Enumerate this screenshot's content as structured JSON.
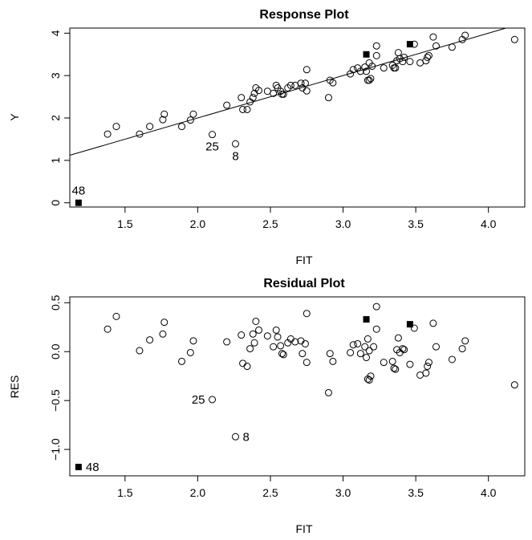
{
  "chart_data": [
    {
      "type": "scatter",
      "title": "Response Plot",
      "xlabel": "FIT",
      "ylabel": "Y",
      "xlim": [
        1.12,
        4.25
      ],
      "ylim": [
        -0.1,
        4.12
      ],
      "xticks": [
        "1.5",
        "2.0",
        "2.5",
        "3.0",
        "3.5",
        "4.0"
      ],
      "yticks": [
        "0",
        "1",
        "2",
        "3",
        "4"
      ],
      "grid": false,
      "fit_line": {
        "intercept": 0.0,
        "slope": 1.0
      },
      "points": [
        {
          "x": 1.38,
          "y": 1.62
        },
        {
          "x": 1.44,
          "y": 1.8
        },
        {
          "x": 1.6,
          "y": 1.62
        },
        {
          "x": 1.67,
          "y": 1.8
        },
        {
          "x": 1.76,
          "y": 1.96
        },
        {
          "x": 1.77,
          "y": 2.09
        },
        {
          "x": 1.89,
          "y": 1.8
        },
        {
          "x": 1.95,
          "y": 1.95
        },
        {
          "x": 1.97,
          "y": 2.09
        },
        {
          "x": 2.2,
          "y": 2.3
        },
        {
          "x": 2.3,
          "y": 2.48
        },
        {
          "x": 2.31,
          "y": 2.2
        },
        {
          "x": 2.34,
          "y": 2.2
        },
        {
          "x": 2.36,
          "y": 2.38
        },
        {
          "x": 2.38,
          "y": 2.48
        },
        {
          "x": 2.39,
          "y": 2.58
        },
        {
          "x": 2.4,
          "y": 2.71
        },
        {
          "x": 2.42,
          "y": 2.65
        },
        {
          "x": 2.48,
          "y": 2.63
        },
        {
          "x": 2.52,
          "y": 2.58
        },
        {
          "x": 2.54,
          "y": 2.77
        },
        {
          "x": 2.55,
          "y": 2.71
        },
        {
          "x": 2.57,
          "y": 2.63
        },
        {
          "x": 2.58,
          "y": 2.56
        },
        {
          "x": 2.59,
          "y": 2.56
        },
        {
          "x": 2.62,
          "y": 2.71
        },
        {
          "x": 2.64,
          "y": 2.77
        },
        {
          "x": 2.67,
          "y": 2.77
        },
        {
          "x": 2.71,
          "y": 2.82
        },
        {
          "x": 2.72,
          "y": 2.71
        },
        {
          "x": 2.74,
          "y": 2.82
        },
        {
          "x": 2.75,
          "y": 3.14
        },
        {
          "x": 2.75,
          "y": 2.64
        },
        {
          "x": 2.9,
          "y": 2.48
        },
        {
          "x": 2.91,
          "y": 2.89
        },
        {
          "x": 2.93,
          "y": 2.83
        },
        {
          "x": 3.05,
          "y": 3.04
        },
        {
          "x": 3.07,
          "y": 3.14
        },
        {
          "x": 3.1,
          "y": 3.18
        },
        {
          "x": 3.12,
          "y": 3.1
        },
        {
          "x": 3.15,
          "y": 3.2
        },
        {
          "x": 3.16,
          "y": 3.1
        },
        {
          "x": 3.17,
          "y": 2.89
        },
        {
          "x": 3.18,
          "y": 3.3
        },
        {
          "x": 3.19,
          "y": 2.93
        },
        {
          "x": 3.18,
          "y": 2.89
        },
        {
          "x": 3.2,
          "y": 3.22
        },
        {
          "x": 3.23,
          "y": 3.47
        },
        {
          "x": 3.23,
          "y": 3.7
        },
        {
          "x": 3.28,
          "y": 3.18
        },
        {
          "x": 3.34,
          "y": 3.24
        },
        {
          "x": 3.35,
          "y": 3.18
        },
        {
          "x": 3.36,
          "y": 3.18
        },
        {
          "x": 3.37,
          "y": 3.35
        },
        {
          "x": 3.38,
          "y": 3.54
        },
        {
          "x": 3.39,
          "y": 3.4
        },
        {
          "x": 3.41,
          "y": 3.33
        },
        {
          "x": 3.42,
          "y": 3.43
        },
        {
          "x": 3.46,
          "y": 3.33
        },
        {
          "x": 3.49,
          "y": 3.74
        },
        {
          "x": 3.53,
          "y": 3.3
        },
        {
          "x": 3.57,
          "y": 3.35
        },
        {
          "x": 3.58,
          "y": 3.43
        },
        {
          "x": 3.59,
          "y": 3.47
        },
        {
          "x": 3.62,
          "y": 3.91
        },
        {
          "x": 3.64,
          "y": 3.7
        },
        {
          "x": 3.75,
          "y": 3.67
        },
        {
          "x": 3.82,
          "y": 3.85
        },
        {
          "x": 3.84,
          "y": 3.95
        },
        {
          "x": 4.18,
          "y": 3.85
        },
        {
          "x": 2.1,
          "y": 1.61
        },
        {
          "x": 2.26,
          "y": 1.39
        }
      ],
      "highlighted_points": [
        {
          "x": 1.18,
          "y": 0.0
        },
        {
          "x": 3.16,
          "y": 3.5
        },
        {
          "x": 3.46,
          "y": 3.74
        }
      ],
      "annotations": [
        {
          "text": "48",
          "x": 1.18,
          "y": 0.0
        },
        {
          "text": "25",
          "x": 2.1,
          "y": 1.61
        },
        {
          "text": "8",
          "x": 2.26,
          "y": 1.39
        }
      ]
    },
    {
      "type": "scatter",
      "title": "Residual Plot",
      "xlabel": "FIT",
      "ylabel": "RES",
      "xlim": [
        1.12,
        4.25
      ],
      "ylim": [
        -1.27,
        0.56
      ],
      "xticks": [
        "1.5",
        "2.0",
        "2.5",
        "3.0",
        "3.5",
        "4.0"
      ],
      "yticks": [
        "0.5",
        "0.0",
        "−0.5",
        "−1.0"
      ],
      "ytick_values": [
        0.5,
        0.0,
        -0.5,
        -1.0
      ],
      "grid": false,
      "points": [
        {
          "x": 1.38,
          "y": 0.23
        },
        {
          "x": 1.44,
          "y": 0.36
        },
        {
          "x": 1.6,
          "y": 0.01
        },
        {
          "x": 1.67,
          "y": 0.12
        },
        {
          "x": 1.76,
          "y": 0.18
        },
        {
          "x": 1.77,
          "y": 0.3
        },
        {
          "x": 1.89,
          "y": -0.1
        },
        {
          "x": 1.95,
          "y": -0.01
        },
        {
          "x": 1.97,
          "y": 0.11
        },
        {
          "x": 2.2,
          "y": 0.1
        },
        {
          "x": 2.3,
          "y": 0.17
        },
        {
          "x": 2.31,
          "y": -0.12
        },
        {
          "x": 2.34,
          "y": -0.15
        },
        {
          "x": 2.36,
          "y": 0.03
        },
        {
          "x": 2.38,
          "y": 0.18
        },
        {
          "x": 2.39,
          "y": 0.09
        },
        {
          "x": 2.4,
          "y": 0.31
        },
        {
          "x": 2.42,
          "y": 0.22
        },
        {
          "x": 2.48,
          "y": 0.16
        },
        {
          "x": 2.52,
          "y": 0.05
        },
        {
          "x": 2.54,
          "y": 0.22
        },
        {
          "x": 2.55,
          "y": 0.15
        },
        {
          "x": 2.57,
          "y": 0.06
        },
        {
          "x": 2.58,
          "y": -0.02
        },
        {
          "x": 2.59,
          "y": -0.03
        },
        {
          "x": 2.62,
          "y": 0.09
        },
        {
          "x": 2.64,
          "y": 0.13
        },
        {
          "x": 2.67,
          "y": 0.1
        },
        {
          "x": 2.71,
          "y": 0.11
        },
        {
          "x": 2.72,
          "y": -0.02
        },
        {
          "x": 2.74,
          "y": 0.08
        },
        {
          "x": 2.75,
          "y": 0.39
        },
        {
          "x": 2.75,
          "y": -0.11
        },
        {
          "x": 2.9,
          "y": -0.42
        },
        {
          "x": 2.91,
          "y": -0.02
        },
        {
          "x": 2.93,
          "y": -0.1
        },
        {
          "x": 3.05,
          "y": -0.01
        },
        {
          "x": 3.07,
          "y": 0.07
        },
        {
          "x": 3.1,
          "y": 0.08
        },
        {
          "x": 3.12,
          "y": -0.02
        },
        {
          "x": 3.15,
          "y": 0.05
        },
        {
          "x": 3.16,
          "y": -0.06
        },
        {
          "x": 3.17,
          "y": -0.28
        },
        {
          "x": 3.17,
          "y": 0.13
        },
        {
          "x": 3.18,
          "y": 0.01
        },
        {
          "x": 3.19,
          "y": -0.25
        },
        {
          "x": 3.18,
          "y": -0.29
        },
        {
          "x": 3.21,
          "y": 0.05
        },
        {
          "x": 3.23,
          "y": 0.23
        },
        {
          "x": 3.23,
          "y": 0.46
        },
        {
          "x": 3.28,
          "y": -0.11
        },
        {
          "x": 3.34,
          "y": -0.1
        },
        {
          "x": 3.35,
          "y": -0.17
        },
        {
          "x": 3.36,
          "y": -0.18
        },
        {
          "x": 3.37,
          "y": 0.02
        },
        {
          "x": 3.38,
          "y": 0.14
        },
        {
          "x": 3.39,
          "y": -0.01
        },
        {
          "x": 3.41,
          "y": 0.03
        },
        {
          "x": 3.42,
          "y": 0.02
        },
        {
          "x": 3.46,
          "y": -0.13
        },
        {
          "x": 3.49,
          "y": 0.24
        },
        {
          "x": 3.53,
          "y": -0.24
        },
        {
          "x": 3.57,
          "y": -0.22
        },
        {
          "x": 3.58,
          "y": -0.15
        },
        {
          "x": 3.59,
          "y": -0.11
        },
        {
          "x": 3.62,
          "y": 0.29
        },
        {
          "x": 3.64,
          "y": 0.05
        },
        {
          "x": 3.75,
          "y": -0.08
        },
        {
          "x": 3.82,
          "y": 0.03
        },
        {
          "x": 3.84,
          "y": 0.11
        },
        {
          "x": 4.18,
          "y": -0.34
        },
        {
          "x": 2.1,
          "y": -0.49
        },
        {
          "x": 2.26,
          "y": -0.87
        }
      ],
      "highlighted_points": [
        {
          "x": 1.18,
          "y": -1.18
        },
        {
          "x": 3.16,
          "y": 0.33
        },
        {
          "x": 3.46,
          "y": 0.28
        }
      ],
      "annotations": [
        {
          "text": "48",
          "x": 1.18,
          "y": -1.18
        },
        {
          "text": "25",
          "x": 2.1,
          "y": -0.49
        },
        {
          "text": "8",
          "x": 2.26,
          "y": -0.87
        }
      ]
    }
  ]
}
